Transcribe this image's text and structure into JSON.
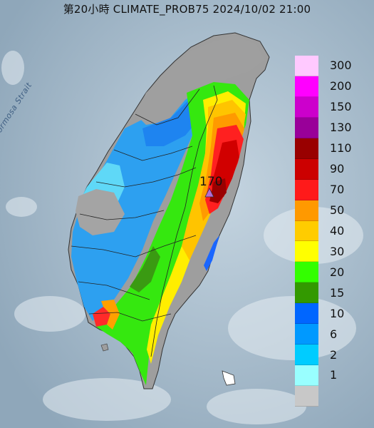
{
  "title": "第20小時  CLIMATE_PROB75 2024/10/02 21:00",
  "strait_label": "Formosa Strait",
  "max_marker": {
    "value": "170",
    "icon": "triangle-marker-icon",
    "color": "#b36bd6"
  },
  "legend": {
    "levels": [
      {
        "label": "300",
        "color": "#ffc9ff"
      },
      {
        "label": "200",
        "color": "#ff00ff"
      },
      {
        "label": "150",
        "color": "#cc00cc"
      },
      {
        "label": "130",
        "color": "#990099"
      },
      {
        "label": "110",
        "color": "#990000"
      },
      {
        "label": "90",
        "color": "#cc0000"
      },
      {
        "label": "70",
        "color": "#ff1a1a"
      },
      {
        "label": "50",
        "color": "#ff9900"
      },
      {
        "label": "40",
        "color": "#ffcc00"
      },
      {
        "label": "30",
        "color": "#ffff00"
      },
      {
        "label": "20",
        "color": "#33ff00"
      },
      {
        "label": "15",
        "color": "#339900"
      },
      {
        "label": "10",
        "color": "#0066ff"
      },
      {
        "label": "6",
        "color": "#0099ff"
      },
      {
        "label": "2",
        "color": "#00ccff"
      },
      {
        "label": "1",
        "color": "#99ffff"
      },
      {
        "label": "",
        "color": "#c8c8c8"
      }
    ]
  }
}
